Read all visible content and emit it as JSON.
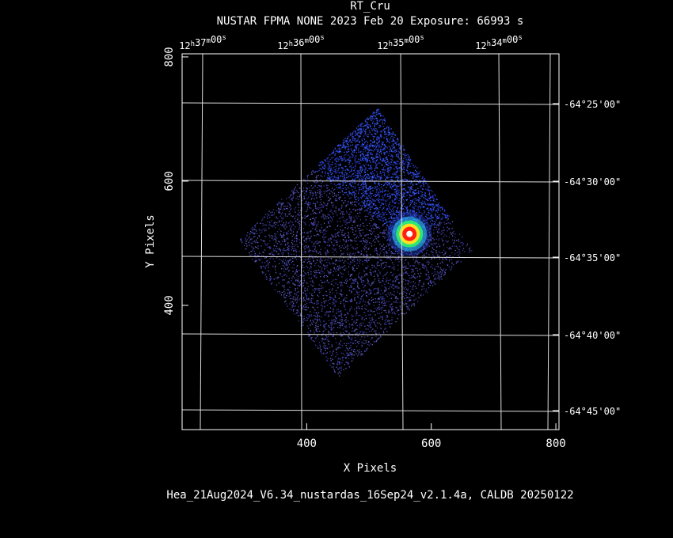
{
  "header": {
    "title": "RT_Cru",
    "subtitle": "NUSTAR FPMA NONE   2023 Feb 20    Exposure: 66993 s"
  },
  "footer": "Hea_21Aug2024_V6.34_nustardas_16Sep24_v2.1.4a, CALDB 20250122",
  "chart_data": {
    "type": "heatmap",
    "title": "RT_Cru",
    "xlabel": "X Pixels",
    "ylabel": "Y Pixels",
    "xlim": [
      200,
      805
    ],
    "ylim": [
      200,
      805
    ],
    "x_ticks": [
      400,
      600,
      800
    ],
    "y_ticks": [
      400,
      600,
      800
    ],
    "top_ticks": [
      "12h37m00s",
      "12h36m00s",
      "12h35m00s",
      "12h34m00s"
    ],
    "right_ticks": [
      "-64°25'00\"",
      "-64°30'00\"",
      "-64°35'00\"",
      "-64°40'00\"",
      "-64°45'00\""
    ],
    "grid": true,
    "colormap": [
      "#1a1aa0",
      "#3050ff",
      "#30d0ff",
      "#30ff60",
      "#ffe020",
      "#ff2010",
      "#ffffff"
    ],
    "exposure_region": {
      "corners": [
        [
          513,
          720
        ],
        [
          665,
          488
        ],
        [
          450,
          285
        ],
        [
          290,
          505
        ]
      ],
      "description": "tilted square field of view with faint background counts"
    },
    "bright_region": {
      "corners": [
        [
          513,
          720
        ],
        [
          630,
          545
        ],
        [
          555,
          505
        ],
        [
          400,
          630
        ]
      ]
    },
    "source": {
      "x": 565,
      "y": 515,
      "peak_color": "#ffffff"
    }
  }
}
